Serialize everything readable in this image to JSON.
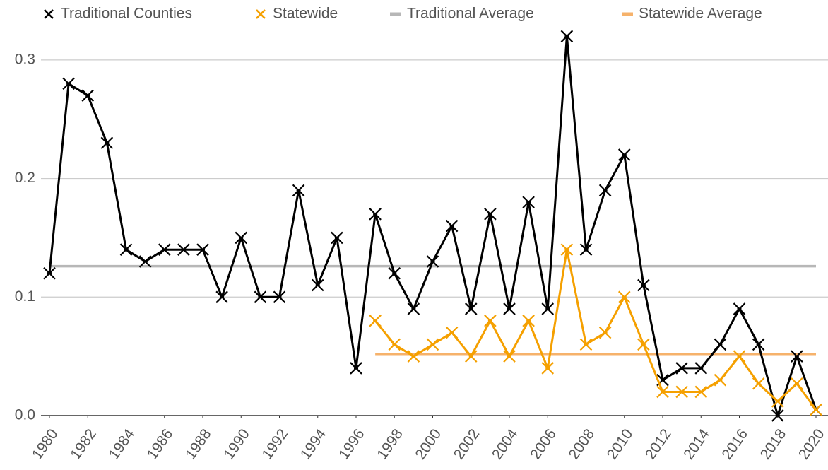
{
  "chart_data": {
    "type": "line",
    "series": [
      {
        "name": "Traditional Counties",
        "color": "#000000",
        "markers": true,
        "x": [
          1980,
          1981,
          1982,
          1983,
          1984,
          1985,
          1986,
          1987,
          1988,
          1989,
          1990,
          1991,
          1992,
          1993,
          1994,
          1995,
          1996,
          1997,
          1998,
          1999,
          2000,
          2001,
          2002,
          2003,
          2004,
          2005,
          2006,
          2007,
          2008,
          2009,
          2010,
          2011,
          2012,
          2013,
          2014,
          2015,
          2016,
          2017,
          2018,
          2019,
          2020
        ],
        "values": [
          0.12,
          0.28,
          0.27,
          0.23,
          0.14,
          0.13,
          0.14,
          0.14,
          0.14,
          0.1,
          0.15,
          0.1,
          0.1,
          0.19,
          0.11,
          0.15,
          0.04,
          0.17,
          0.12,
          0.09,
          0.13,
          0.16,
          0.09,
          0.17,
          0.09,
          0.18,
          0.09,
          0.32,
          0.14,
          0.19,
          0.22,
          0.11,
          0.03,
          0.04,
          0.04,
          0.06,
          0.09,
          0.06,
          0.0,
          0.05,
          0.005
        ]
      },
      {
        "name": "Statewide",
        "color": "#f5a000",
        "markers": true,
        "x": [
          1997,
          1998,
          1999,
          2000,
          2001,
          2002,
          2003,
          2004,
          2005,
          2006,
          2007,
          2008,
          2009,
          2010,
          2011,
          2012,
          2013,
          2014,
          2015,
          2016,
          2017,
          2018,
          2019,
          2020
        ],
        "values": [
          0.08,
          0.06,
          0.05,
          0.06,
          0.07,
          0.05,
          0.08,
          0.05,
          0.08,
          0.04,
          0.14,
          0.06,
          0.07,
          0.1,
          0.06,
          0.02,
          0.02,
          0.02,
          0.03,
          0.05,
          0.027,
          0.012,
          0.027,
          0.005
        ]
      },
      {
        "name": "Traditional Average",
        "color": "#b7b7b7",
        "markers": false,
        "x": [
          1980,
          2020
        ],
        "values": [
          0.126,
          0.126
        ]
      },
      {
        "name": "Statewide Average",
        "color": "#f6b26b",
        "markers": false,
        "x": [
          1997,
          2020
        ],
        "values": [
          0.052,
          0.052
        ]
      }
    ],
    "xlim": [
      1980,
      2020
    ],
    "xticks": [
      1980,
      1982,
      1984,
      1986,
      1988,
      1990,
      1992,
      1994,
      1996,
      1998,
      2000,
      2002,
      2004,
      2006,
      2008,
      2010,
      2012,
      2014,
      2016,
      2018,
      2020
    ],
    "ylim": [
      0,
      0.35
    ],
    "yticks": [
      {
        "value": 0,
        "label": "0.0"
      },
      0.1,
      0.2,
      0.3
    ],
    "grid": true
  }
}
